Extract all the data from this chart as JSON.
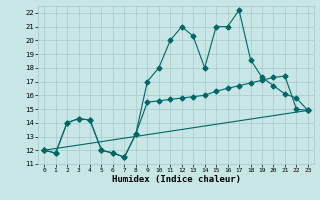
{
  "xlabel": "Humidex (Indice chaleur)",
  "bg_color": "#c8e6e6",
  "grid_color": "#aacfcf",
  "line_color": "#006666",
  "xlim": [
    -0.5,
    23.5
  ],
  "ylim": [
    11,
    22.5
  ],
  "xticks": [
    0,
    1,
    2,
    3,
    4,
    5,
    6,
    7,
    8,
    9,
    10,
    11,
    12,
    13,
    14,
    15,
    16,
    17,
    18,
    19,
    20,
    21,
    22,
    23
  ],
  "yticks": [
    11,
    12,
    13,
    14,
    15,
    16,
    17,
    18,
    19,
    20,
    21,
    22
  ],
  "line1_x": [
    0,
    1,
    2,
    3,
    4,
    5,
    6,
    7,
    8,
    9,
    10,
    11,
    12,
    13,
    14,
    15,
    16,
    17,
    18,
    19,
    20,
    21,
    22,
    23
  ],
  "line1_y": [
    12,
    11.8,
    14.0,
    14.3,
    14.2,
    12.0,
    11.8,
    11.5,
    13.2,
    17.0,
    18.0,
    20.0,
    21.0,
    20.3,
    18.0,
    21.0,
    21.0,
    22.2,
    18.6,
    17.3,
    16.7,
    16.1,
    15.8,
    14.9
  ],
  "line2_x": [
    0,
    1,
    2,
    3,
    4,
    5,
    6,
    7,
    8,
    9,
    10,
    11,
    12,
    13,
    14,
    15,
    16,
    17,
    18,
    19,
    20,
    21,
    22,
    23
  ],
  "line2_y": [
    12,
    11.8,
    14.0,
    14.3,
    14.2,
    12.0,
    11.8,
    11.5,
    13.2,
    15.5,
    15.6,
    15.7,
    15.8,
    15.9,
    16.0,
    16.3,
    16.5,
    16.7,
    16.9,
    17.1,
    17.3,
    17.4,
    15.0,
    14.9
  ],
  "line3_x": [
    0,
    23
  ],
  "line3_y": [
    12,
    14.9
  ],
  "marker_size": 2.5,
  "line_width": 0.8
}
